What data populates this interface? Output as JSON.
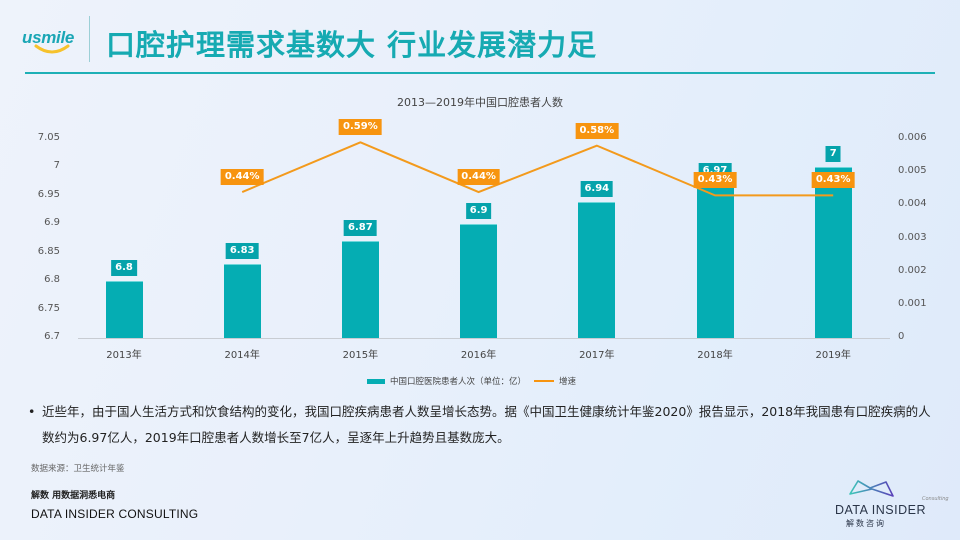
{
  "header": {
    "logo_text": "usmile",
    "title": "口腔护理需求基数大 行业发展潜力足"
  },
  "colors": {
    "accent_teal": "#05adb3",
    "accent_orange": "#f7940f",
    "title_teal": "#16aab2"
  },
  "chart_data": {
    "type": "bar+line",
    "title": "2013—2019年中国口腔患者人数",
    "categories": [
      "2013年",
      "2014年",
      "2015年",
      "2016年",
      "2017年",
      "2018年",
      "2019年"
    ],
    "series": [
      {
        "name": "中国口腔医院患者人次（单位：亿）",
        "type": "bar",
        "axis": "left",
        "values": [
          6.8,
          6.83,
          6.87,
          6.9,
          6.94,
          6.97,
          7
        ],
        "labels": [
          "6.8",
          "6.83",
          "6.87",
          "6.9",
          "6.94",
          "6.97",
          "7"
        ]
      },
      {
        "name": "增速",
        "type": "line",
        "axis": "right",
        "values": [
          null,
          0.0044,
          0.0059,
          0.0044,
          0.0058,
          0.0043,
          0.0043
        ],
        "labels": [
          null,
          "0.44%",
          "0.59%",
          "0.44%",
          "0.58%",
          "0.43%",
          "0.43%"
        ]
      }
    ],
    "left_axis": {
      "ticks": [
        "7.05",
        "7",
        "6.95",
        "6.9",
        "6.85",
        "6.8",
        "6.75",
        "6.7"
      ],
      "ylim": [
        6.7,
        7.05
      ]
    },
    "right_axis": {
      "ticks": [
        "0.006",
        "0.005",
        "0.004",
        "0.003",
        "0.002",
        "0.001",
        "0"
      ],
      "ylim": [
        0,
        0.006
      ]
    },
    "legend": {
      "position": "bottom",
      "bar_label": "中国口腔医院患者人次（单位：亿）",
      "line_label": "增速"
    },
    "grid": false
  },
  "body": {
    "bullet": "•",
    "paragraph": "近些年，由于国人生活方式和饮食结构的变化，我国口腔疾病患者人数呈增长态势。据《中国卫生健康统计年鉴2020》报告显示，2018年我国患有口腔疾病的人数约为6.97亿人，2019年口腔患者人数增长至7亿人，呈逐年上升趋势且基数庞大。"
  },
  "footer": {
    "source": "数据来源：卫生统计年鉴",
    "tagline_cn": "解数 用数据洞悉电商",
    "company_en": "DATA INSIDER CONSULTING",
    "logo_consulting": "Consulting",
    "logo_name": "DATA INSIDER",
    "logo_cn": "解数咨询"
  }
}
